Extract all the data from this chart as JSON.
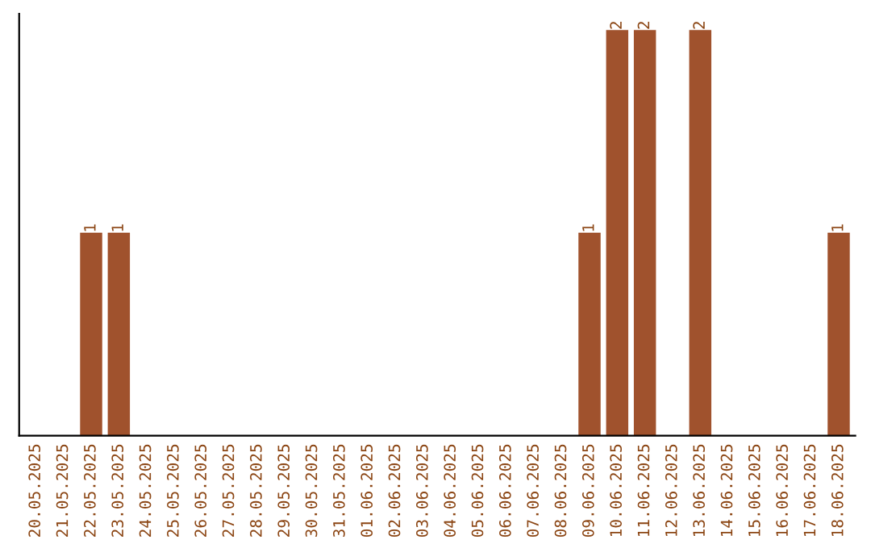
{
  "chart_data": {
    "type": "bar",
    "categories": [
      "20.05.2025",
      "21.05.2025",
      "22.05.2025",
      "23.05.2025",
      "24.05.2025",
      "25.05.2025",
      "26.05.2025",
      "27.05.2025",
      "28.05.2025",
      "29.05.2025",
      "30.05.2025",
      "31.05.2025",
      "01.06.2025",
      "02.06.2025",
      "03.06.2025",
      "04.06.2025",
      "05.06.2025",
      "06.06.2025",
      "07.06.2025",
      "08.06.2025",
      "09.06.2025",
      "10.06.2025",
      "11.06.2025",
      "12.06.2025",
      "13.06.2025",
      "14.06.2025",
      "15.06.2025",
      "16.06.2025",
      "17.06.2025",
      "18.06.2025"
    ],
    "values": [
      0,
      0,
      1,
      1,
      0,
      0,
      0,
      0,
      0,
      0,
      0,
      0,
      0,
      0,
      0,
      0,
      0,
      0,
      0,
      0,
      1,
      2,
      2,
      0,
      2,
      0,
      0,
      0,
      0,
      1
    ],
    "value_labels": [
      null,
      null,
      "1",
      "1",
      null,
      null,
      null,
      null,
      null,
      null,
      null,
      null,
      null,
      null,
      null,
      null,
      null,
      null,
      null,
      null,
      "1",
      "2",
      "2",
      null,
      "2",
      null,
      null,
      null,
      null,
      "1"
    ],
    "color": "#a0522d",
    "tick_labels": "x",
    "grid": false
  }
}
